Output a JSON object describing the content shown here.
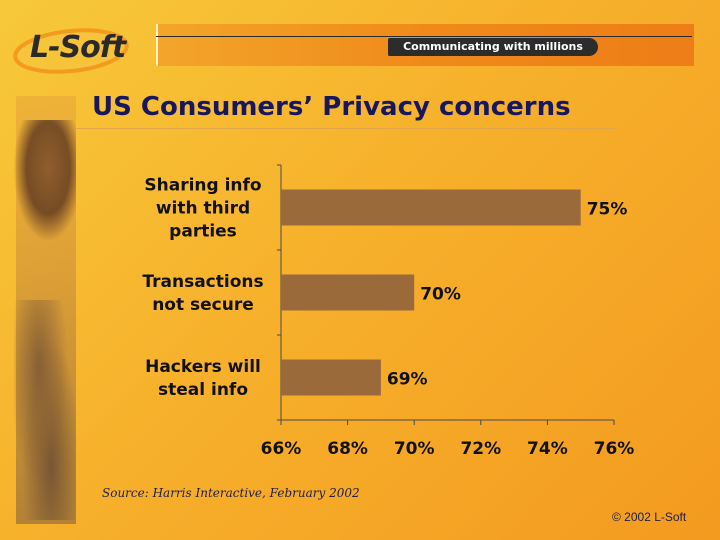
{
  "brand": {
    "logo_text": "L-Soft",
    "tagline": "Communicating with millions"
  },
  "title": "US Consumers’ Privacy concerns",
  "source": "Source: Harris Interactive, February 2002",
  "copyright": "© 2002 L-Soft",
  "colors": {
    "bar": "#9b6a3b",
    "axis": "#4a4a4a",
    "label": "#111111",
    "title": "#17175e"
  },
  "chart_data": {
    "type": "bar",
    "orientation": "horizontal",
    "categories": [
      "Sharing info with third parties",
      "Transactions not secure",
      "Hackers will steal info"
    ],
    "values": [
      75,
      70,
      69
    ],
    "value_labels": [
      "75%",
      "70%",
      "69%"
    ],
    "xlim": [
      66,
      76
    ],
    "xticks": [
      "66%",
      "68%",
      "70%",
      "72%",
      "74%",
      "76%"
    ],
    "grid": false
  }
}
